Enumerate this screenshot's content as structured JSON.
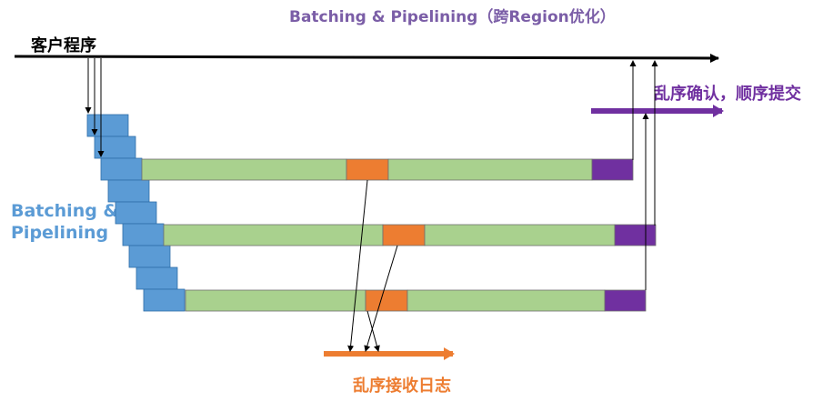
{
  "title": "Batching & Pipelining（跨Region优化）",
  "client_label": "客户程序",
  "left_label_line1": "Batching &",
  "left_label_line2": "Pipelining",
  "commit_label": "乱序确认，顺序提交",
  "log_label": "乱序接收日志",
  "colors": {
    "title": "#7b5ea7",
    "client_text": "#000000",
    "left_label": "#5b9bd5",
    "batch_block": "#5b9bd5",
    "pipeline_segment": "#a9d18e",
    "log_segment": "#ed7d31",
    "commit_segment": "#7030a0",
    "commit_label": "#7030a0",
    "log_label": "#ed7d31",
    "arrow": "#000000"
  }
}
